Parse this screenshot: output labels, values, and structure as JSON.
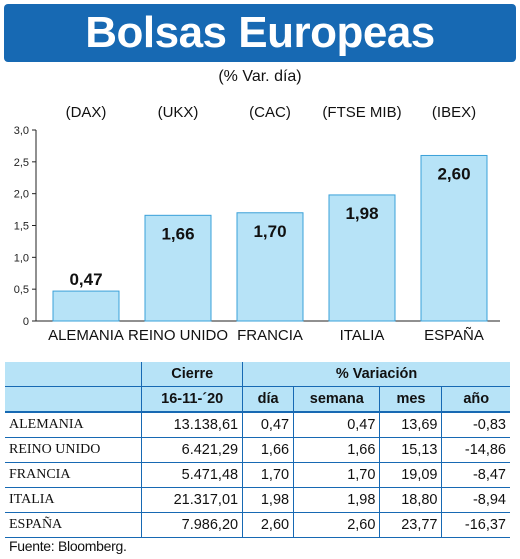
{
  "header": {
    "title": "Bolsas Europeas",
    "subtitle": "(% Var. día)"
  },
  "chart_data": {
    "type": "bar",
    "title": "Bolsas Europeas",
    "subtitle": "(% Var. día)",
    "categories": [
      "ALEMANIA",
      "REINO UNIDO",
      "FRANCIA",
      "ITALIA",
      "ESPAÑA"
    ],
    "indices": [
      "(DAX)",
      "(UKX)",
      "(CAC)",
      "(FTSE MIB)",
      "(IBEX)"
    ],
    "values": [
      0.47,
      1.66,
      1.7,
      1.98,
      2.6
    ],
    "value_labels": [
      "0,47",
      "1,66",
      "1,70",
      "1,98",
      "2,60"
    ],
    "yticks": [
      "0",
      "0,5",
      "1,0",
      "1,5",
      "2,0",
      "2,5",
      "3,0"
    ],
    "ylim": [
      0,
      3.0
    ],
    "grid": false,
    "bar_color": "#b7e3f7",
    "bar_border_color": "#3aa0d8"
  },
  "table": {
    "header_cierre": "Cierre",
    "header_variacion": "% Variación",
    "date": "16-11-´20",
    "cols": [
      "día",
      "semana",
      "mes",
      "año"
    ],
    "rows": [
      {
        "country": "ALEMANIA",
        "close": "13.138,61",
        "dia": "0,47",
        "semana": "0,47",
        "mes": "13,69",
        "anio": "-0,83"
      },
      {
        "country": "REINO UNIDO",
        "close": "6.421,29",
        "dia": "1,66",
        "semana": "1,66",
        "mes": "15,13",
        "anio": "-14,86"
      },
      {
        "country": "FRANCIA",
        "close": "5.471,48",
        "dia": "1,70",
        "semana": "1,70",
        "mes": "19,09",
        "anio": "-8,47"
      },
      {
        "country": "ITALIA",
        "close": "21.317,01",
        "dia": "1,98",
        "semana": "1,98",
        "mes": "18,80",
        "anio": "-8,94"
      },
      {
        "country": "ESPAÑA",
        "close": "7.986,20",
        "dia": "2,60",
        "semana": "2,60",
        "mes": "23,77",
        "anio": "-16,37"
      }
    ]
  },
  "source": "Fuente: Bloomberg.",
  "colors": {
    "brand_blue": "#1769b3",
    "light_blue": "#b7e3f7"
  }
}
